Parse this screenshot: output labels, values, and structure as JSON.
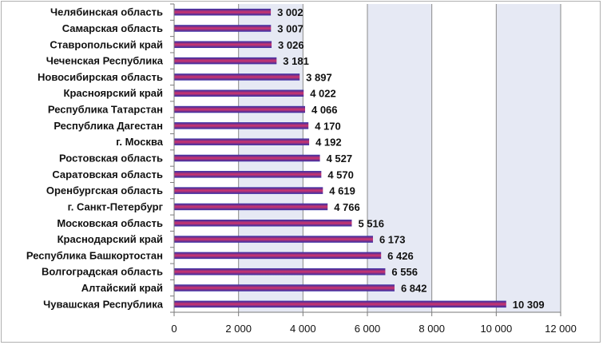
{
  "chart_data": {
    "type": "bar",
    "orientation": "horizontal",
    "title": "",
    "xlabel": "",
    "ylabel": "",
    "xlim": [
      0,
      12000
    ],
    "xticks": [
      0,
      2000,
      4000,
      6000,
      8000,
      10000,
      12000
    ],
    "xtick_labels": [
      "0",
      "2 000",
      "4 000",
      "6 000",
      "8 000",
      "10 000",
      "12 000"
    ],
    "grid": "vertical",
    "legend": "none",
    "categories": [
      "Челябинская область",
      "Самарская область",
      "Ставропольский край",
      "Чеченская Республика",
      "Новосибирская область",
      "Красноярский край",
      "Республика Татарстан",
      "Республика Дагестан",
      "г. Москва",
      "Ростовская область",
      "Саратовская область",
      "Оренбургская область",
      "г. Санкт-Петербург",
      "Московская область",
      "Краснодарский край",
      "Республика Башкортостан",
      "Волгоградская область",
      "Алтайский край",
      "Чувашская Республика"
    ],
    "values": [
      3002,
      3007,
      3026,
      3181,
      3897,
      4022,
      4066,
      4170,
      4192,
      4527,
      4570,
      4619,
      4766,
      5516,
      6173,
      6426,
      6556,
      6842,
      10309
    ],
    "value_labels": [
      "3 002",
      "3 007",
      "3 026",
      "3 181",
      "3 897",
      "4 022",
      "4 066",
      "4 170",
      "4 192",
      "4 527",
      "4 570",
      "4 619",
      "4 766",
      "5 516",
      "6 173",
      "6 426",
      "6 556",
      "6 842",
      "10 309"
    ],
    "colors": {
      "bar_top": "#2e2ea8",
      "bar_mid": "#d2346b",
      "bar_bottom": "#2e2ea8",
      "plot_bg_band": "#e6e9f4",
      "grid": "#8a8a8a"
    }
  }
}
